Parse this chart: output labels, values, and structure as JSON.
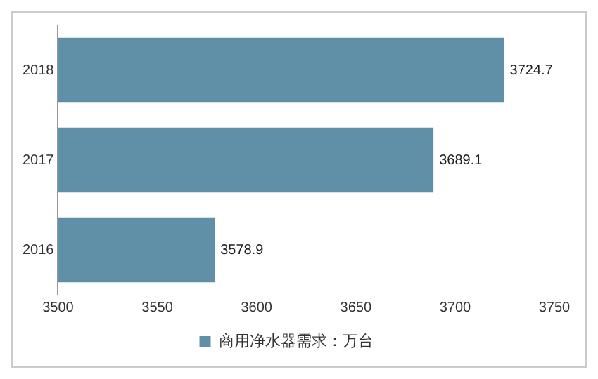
{
  "chart_data": {
    "type": "bar",
    "orientation": "horizontal",
    "categories": [
      "2018",
      "2017",
      "2016"
    ],
    "series": [
      {
        "name": "商用净水器需求：万台",
        "color": "#5f90a8",
        "values": [
          3724.7,
          3689.1,
          3578.9
        ]
      }
    ],
    "xlim": [
      3500,
      3750
    ],
    "xticks": [
      3500,
      3550,
      3600,
      3650,
      3700,
      3750
    ],
    "grid": false,
    "legend": "bottom",
    "data_labels": true
  }
}
